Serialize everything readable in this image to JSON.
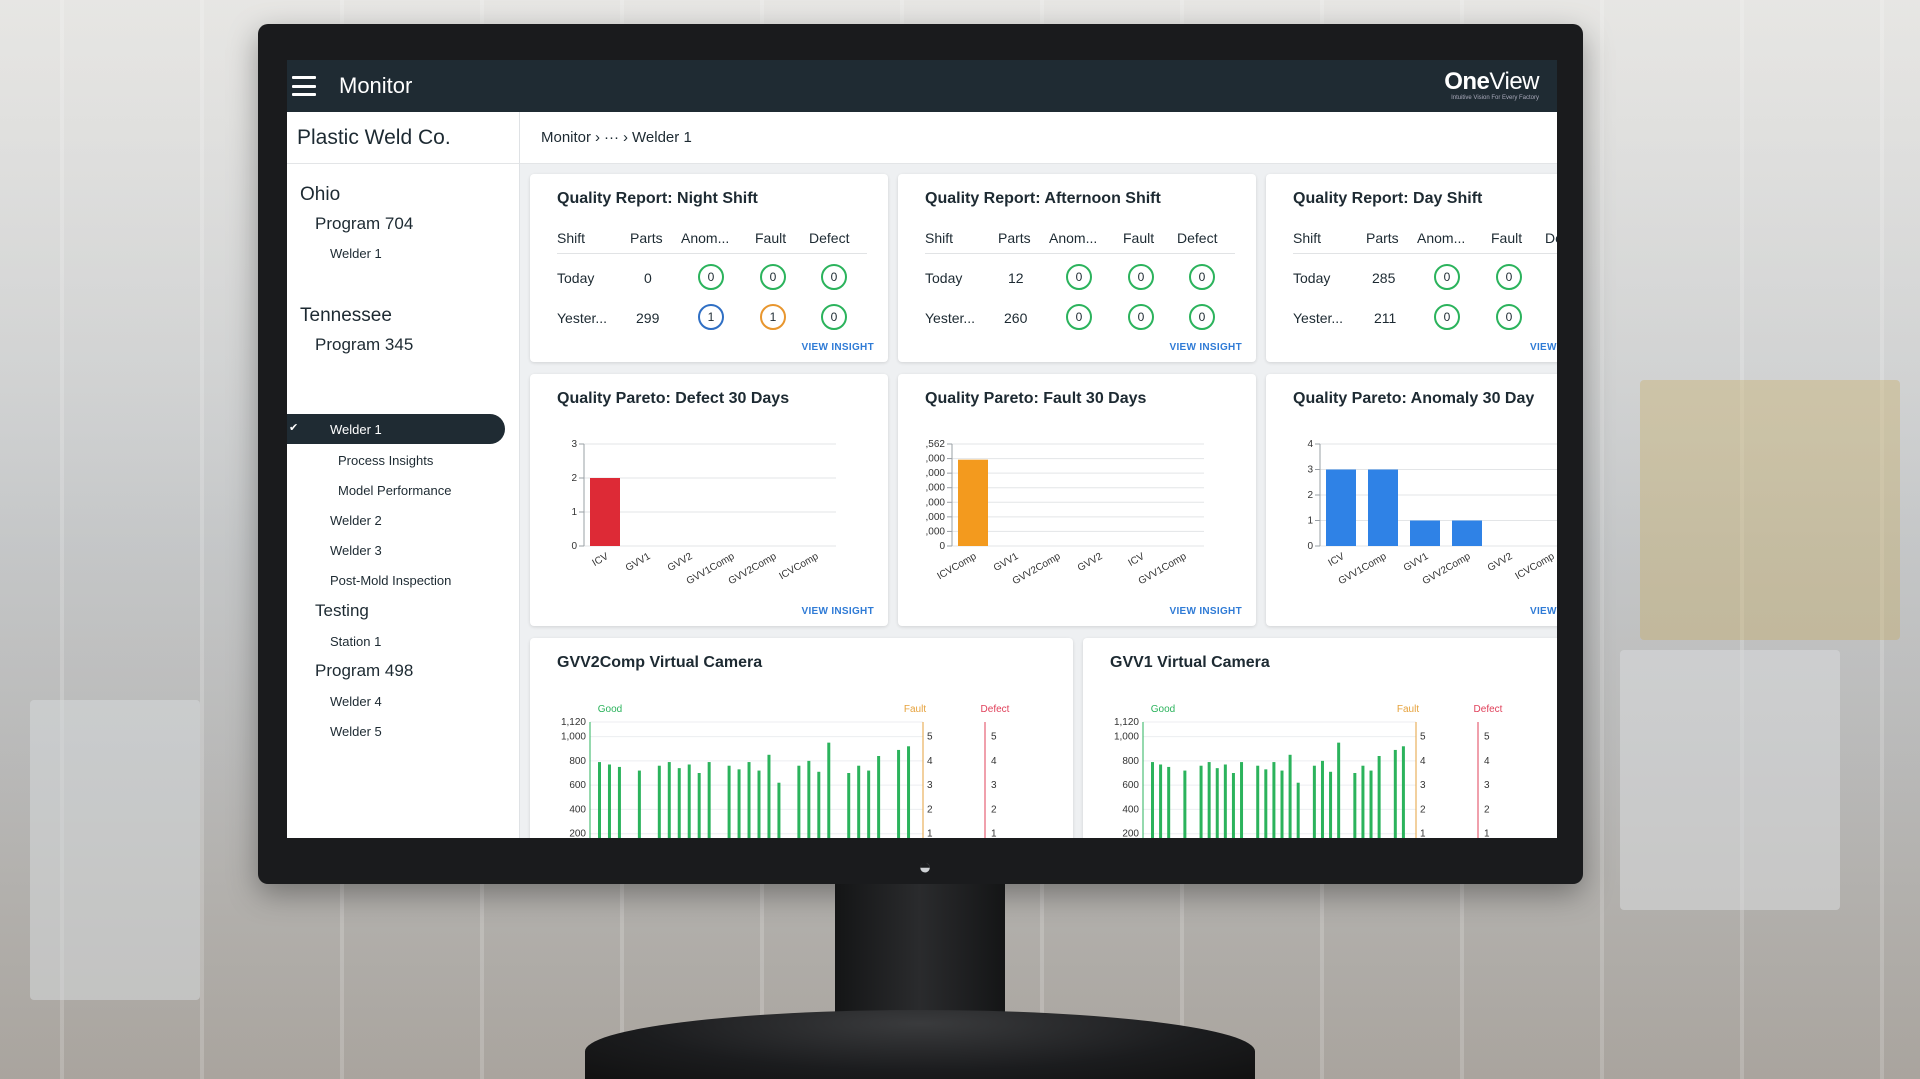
{
  "app": {
    "title": "Monitor",
    "brand_strong": "One",
    "brand_light": "View",
    "brand_tag": "Intuitive Vision For Every Factory"
  },
  "sidebar": {
    "company": "Plastic Weld Co.",
    "ohio": "Ohio",
    "program_704": "Program 704",
    "ohio_welder_1": "Welder 1",
    "tennessee": "Tennessee",
    "program_345": "Program 345",
    "active_item": "Welder 1",
    "process_insights": "Process Insights",
    "model_performance": "Model Performance",
    "welder_2": "Welder 2",
    "welder_3": "Welder 3",
    "post_mold": "Post-Mold Inspection",
    "testing": "Testing",
    "station_1": "Station 1",
    "program_498": "Program 498",
    "welder_4": "Welder 4",
    "welder_5": "Welder 5"
  },
  "breadcrumb": {
    "root": "Monitor",
    "ellipsis": "···",
    "current": "Welder 1"
  },
  "quality_reports": [
    {
      "title": "Quality Report: Night Shift",
      "headers": [
        "Shift",
        "Parts",
        "Anom...",
        "Fault",
        "Defect"
      ],
      "rows": [
        {
          "shift": "Today",
          "parts": "0",
          "anomaly": "0",
          "fault": "0",
          "defect": "0"
        },
        {
          "shift": "Yester...",
          "parts": "299",
          "anomaly": "1",
          "fault": "1",
          "defect": "0"
        }
      ],
      "link": "VIEW INSIGHT"
    },
    {
      "title": "Quality Report: Afternoon Shift",
      "headers": [
        "Shift",
        "Parts",
        "Anom...",
        "Fault",
        "Defect"
      ],
      "rows": [
        {
          "shift": "Today",
          "parts": "12",
          "anomaly": "0",
          "fault": "0",
          "defect": "0"
        },
        {
          "shift": "Yester...",
          "parts": "260",
          "anomaly": "0",
          "fault": "0",
          "defect": "0"
        }
      ],
      "link": "VIEW INSIGHT"
    },
    {
      "title": "Quality Report: Day Shift",
      "headers": [
        "Shift",
        "Parts",
        "Anom...",
        "Fault",
        "De"
      ],
      "rows": [
        {
          "shift": "Today",
          "parts": "285",
          "anomaly": "0",
          "fault": "0",
          "defect": ""
        },
        {
          "shift": "Yester...",
          "parts": "211",
          "anomaly": "0",
          "fault": "0",
          "defect": ""
        }
      ],
      "link": "VIEW"
    }
  ],
  "colors": {
    "good": "#2bb35c",
    "anomaly_flag": "#2f6fc4",
    "fault_flag": "#e8962e",
    "defect_bar": "#dd2a36",
    "fault_bar": "#f39a1e",
    "anomaly_bar": "#2f82e6",
    "fault_axis": "#e6a23c",
    "defect_axis": "#e0405a",
    "topbar": "#1f2b33"
  },
  "chart_data": [
    {
      "type": "bar",
      "title": "Quality Pareto: Defect 30 Days",
      "categories": [
        "ICV",
        "GVV1",
        "GVV2",
        "GVV1Comp",
        "GVV2Comp",
        "ICVComp"
      ],
      "values": [
        2,
        0,
        0,
        0,
        0,
        0
      ],
      "ylim": [
        0,
        3
      ],
      "yticks": [
        "0",
        "1",
        "2",
        "3"
      ],
      "color": "#dd2a36",
      "link": "VIEW INSIGHT"
    },
    {
      "type": "bar",
      "title": "Quality Pareto: Fault 30 Days",
      "categories": [
        "ICVComp",
        "GVV1",
        "GVV2Comp",
        "GVV2",
        "ICV",
        "GVV1Comp"
      ],
      "values": [
        6400,
        0,
        0,
        0,
        0,
        0
      ],
      "ylim": [
        0,
        7562
      ],
      "yticks": [
        "0",
        ",000",
        ",000",
        ",000",
        ",000",
        ",000",
        ",000",
        ",562"
      ],
      "color": "#f39a1e",
      "link": "VIEW INSIGHT"
    },
    {
      "type": "bar",
      "title": "Quality Pareto: Anomaly 30 Day",
      "categories": [
        "ICV",
        "GVV1Comp",
        "GVV1",
        "GVV2Comp",
        "GVV2",
        "ICVComp"
      ],
      "values": [
        3,
        3,
        1,
        1,
        0,
        0
      ],
      "ylim": [
        0,
        4
      ],
      "yticks": [
        "0",
        "1",
        "2",
        "3",
        "4"
      ],
      "color": "#2f82e6",
      "link": "VIEW"
    },
    {
      "type": "bar",
      "title": "GVV2Comp Virtual Camera",
      "legend": [
        "Good",
        "Fault",
        "Defect"
      ],
      "y_good_ticks": [
        "200",
        "400",
        "600",
        "800",
        "1,000",
        "1,120"
      ],
      "y_fault_ticks": [
        "1",
        "2",
        "3",
        "4",
        "5"
      ],
      "y_defect_ticks": [
        "1",
        "2",
        "3",
        "4",
        "5"
      ],
      "ylim_good": [
        0,
        1120
      ],
      "good_values": [
        790,
        770,
        750,
        0,
        720,
        0,
        760,
        790,
        740,
        770,
        700,
        790,
        0,
        760,
        730,
        790,
        720,
        850,
        620,
        0,
        760,
        800,
        710,
        950,
        0,
        700,
        760,
        720,
        840,
        0,
        890,
        920
      ]
    },
    {
      "type": "bar",
      "title": "GVV1 Virtual Camera",
      "legend": [
        "Good",
        "Fault",
        "Defect"
      ],
      "y_good_ticks": [
        "200",
        "400",
        "600",
        "800",
        "1,000",
        "1,120"
      ],
      "y_fault_ticks": [
        "1",
        "2",
        "3",
        "4",
        "5"
      ],
      "y_defect_ticks": [
        "1",
        "2",
        "3",
        "4",
        "5"
      ],
      "ylim_good": [
        0,
        1120
      ],
      "good_values": [
        790,
        770,
        750,
        0,
        720,
        0,
        760,
        790,
        740,
        770,
        700,
        790,
        0,
        760,
        730,
        790,
        720,
        850,
        620,
        0,
        760,
        800,
        710,
        950,
        0,
        700,
        760,
        720,
        840,
        0,
        890,
        920
      ]
    }
  ]
}
